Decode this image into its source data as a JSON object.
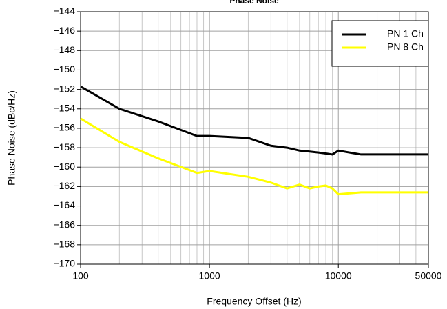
{
  "chart_data": {
    "type": "line",
    "title": "Phase Noise",
    "x_label": "Frequency Offset (Hz)",
    "y_label": "Phase Noise (dBc/Hz)",
    "x": [
      100,
      200,
      400,
      800,
      1000,
      2000,
      3000,
      4000,
      5000,
      6000,
      7000,
      8000,
      9000,
      10000,
      15000,
      50000
    ],
    "series": [
      {
        "name": "PN 1 Ch",
        "color": "#000000",
        "values": [
          -151.7,
          -154,
          -155.3,
          -156.8,
          -156.8,
          -157,
          -157.8,
          -158,
          -158.3,
          -158.4,
          -158.5,
          -158.6,
          -158.7,
          -158.3,
          -158.7,
          -158.7
        ]
      },
      {
        "name": "PN 8 Ch",
        "color": "#ffff00",
        "values": [
          -155,
          -157.4,
          -159.1,
          -160.6,
          -160.4,
          -161,
          -161.6,
          -162.2,
          -161.8,
          -162.2,
          -162,
          -161.9,
          -162.2,
          -162.8,
          -162.6,
          -162.6
        ]
      }
    ],
    "xlim": [
      100,
      50000
    ],
    "xticks": [
      100,
      1000,
      10000,
      50000
    ],
    "xscale": "log",
    "ylim": [
      -170,
      -144
    ],
    "yticks": [
      {
        "value": -170,
        "label": "−170"
      },
      {
        "value": -168,
        "label": "−168"
      },
      {
        "value": -166,
        "label": "−166"
      },
      {
        "value": -164,
        "label": "−164"
      },
      {
        "value": -162,
        "label": "−162"
      },
      {
        "value": -160,
        "label": "−160"
      },
      {
        "value": -158,
        "label": "−158"
      },
      {
        "value": -156,
        "label": "−156"
      },
      {
        "value": -154,
        "label": "−154"
      },
      {
        "value": -152,
        "label": "−152"
      },
      {
        "value": -150,
        "label": "−150"
      },
      {
        "value": -148,
        "label": "−148"
      },
      {
        "value": -146,
        "label": "−146"
      },
      {
        "value": -144,
        "label": "−144"
      }
    ],
    "grid": true,
    "legend": "upper right"
  }
}
